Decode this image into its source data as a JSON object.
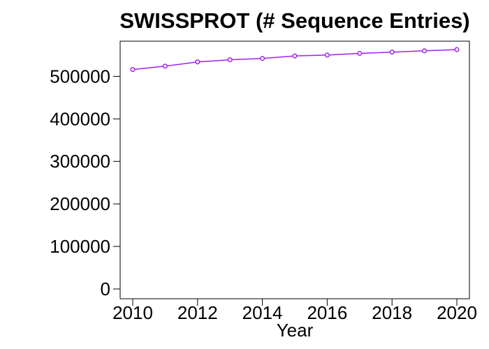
{
  "chart_data": {
    "type": "line",
    "title": "SWISSPROT (# Sequence Entries)",
    "xlabel": "Year",
    "ylabel": "",
    "x": [
      2010,
      2011,
      2012,
      2013,
      2014,
      2015,
      2016,
      2017,
      2018,
      2019,
      2020
    ],
    "series": [
      {
        "values": [
          516000,
          524000,
          534000,
          539000,
          542000,
          548000,
          550000,
          554000,
          557000,
          560000,
          563000
        ]
      }
    ],
    "xlim": [
      2010,
      2020
    ],
    "ylim": [
      0,
      563000
    ],
    "xticks": [
      "2010",
      "2012",
      "2014",
      "2016",
      "2018",
      "2020"
    ],
    "yticks": [
      "0",
      "100000",
      "200000",
      "300000",
      "400000",
      "500000"
    ],
    "grid": false,
    "marker": "open-circle",
    "colors": {
      "series": "#a020f0",
      "axis": "#000000"
    }
  }
}
